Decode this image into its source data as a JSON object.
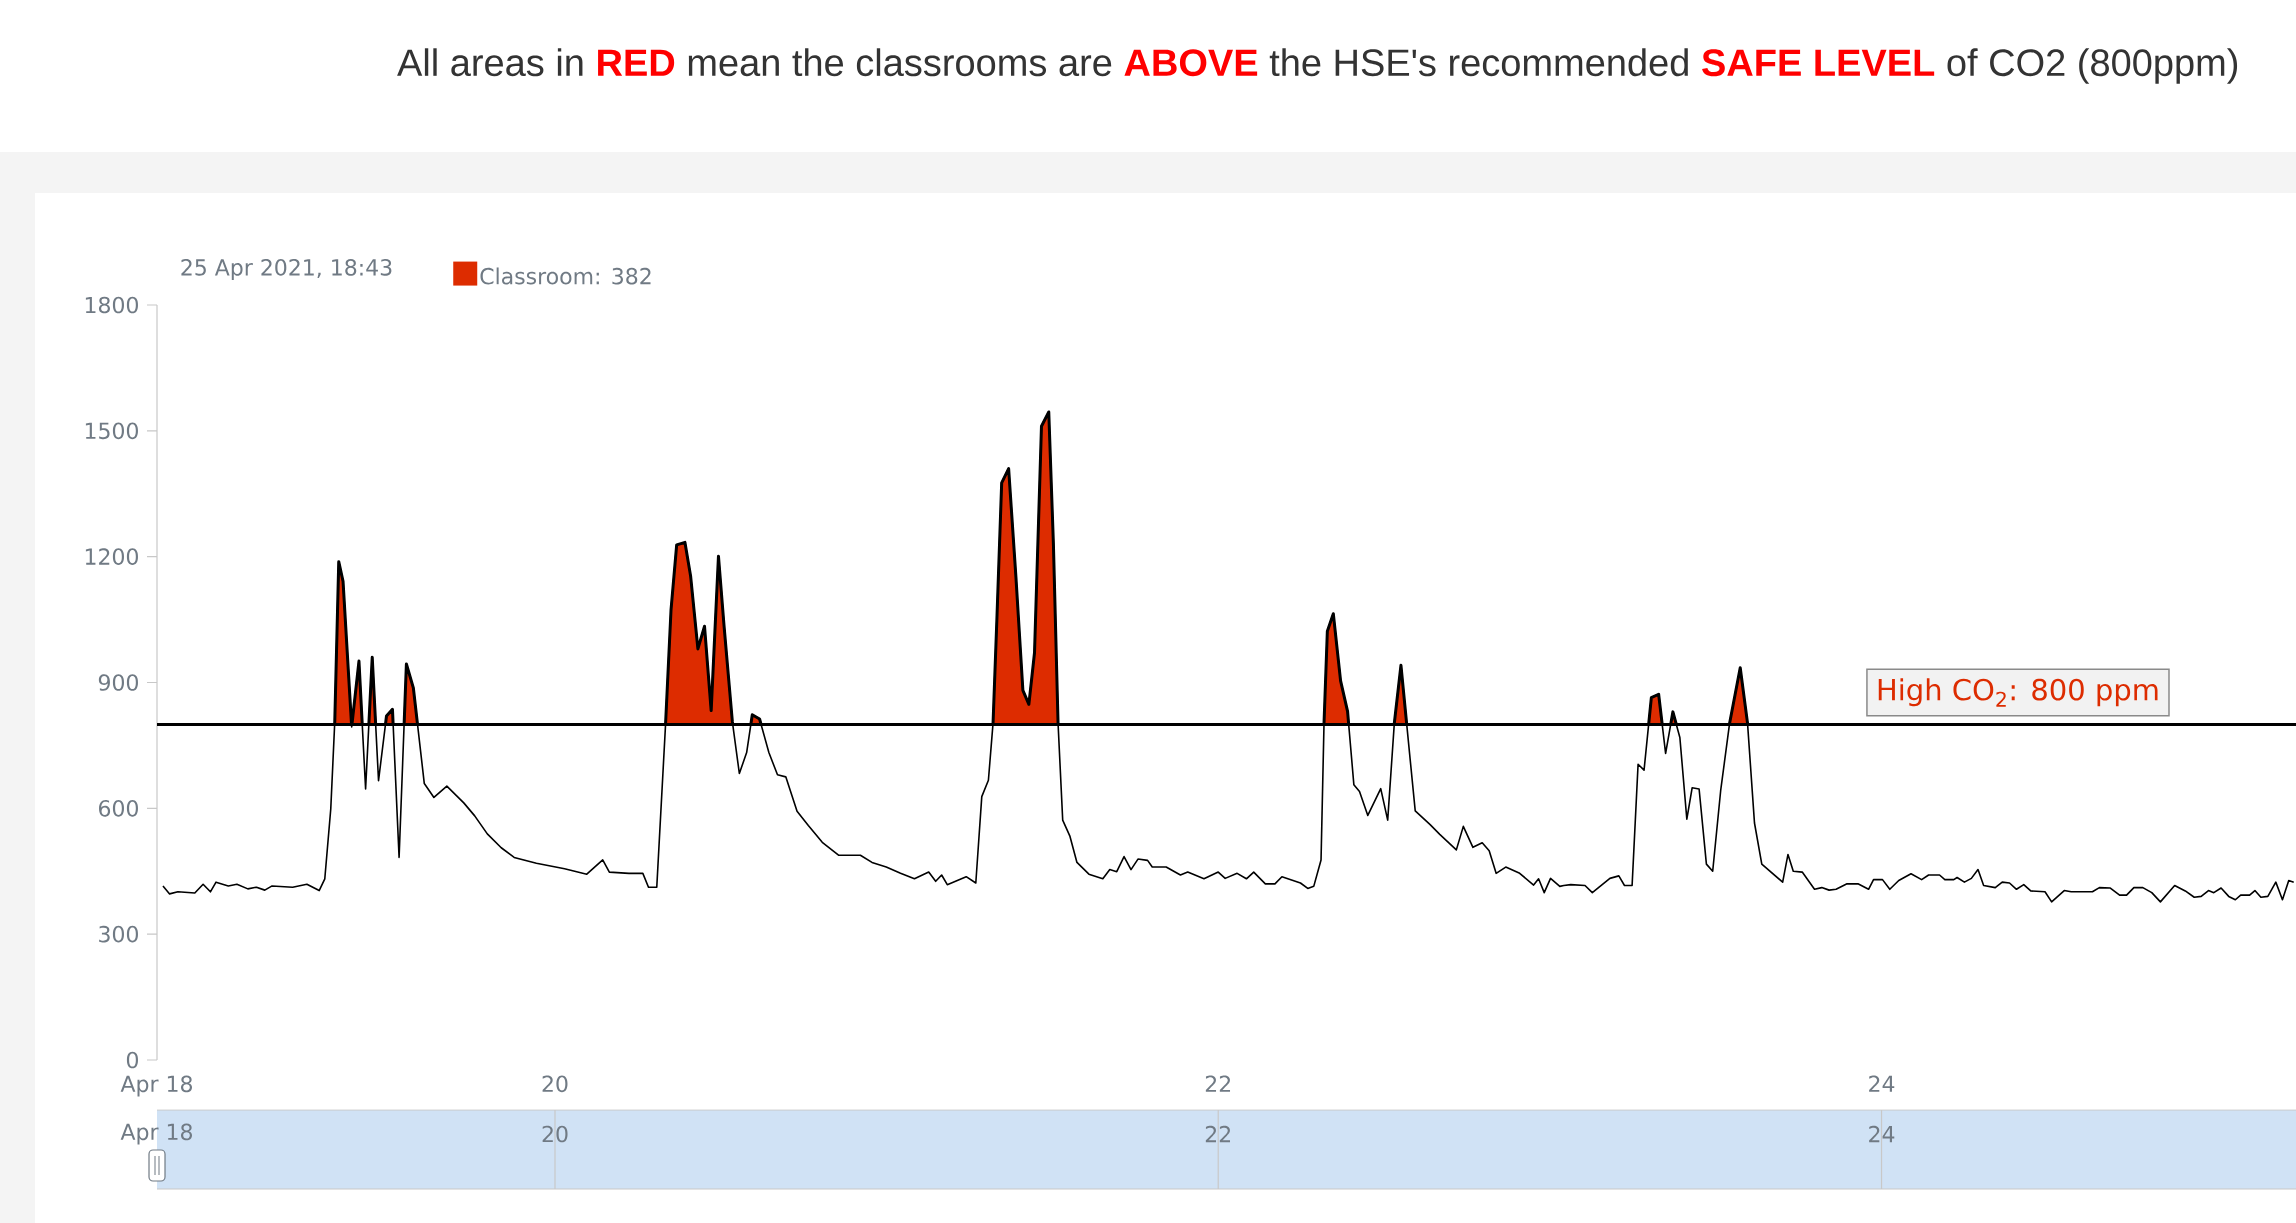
{
  "chart_data": {
    "type": "area",
    "title": "All areas in **RED** mean the classrooms are **ABOVE** the HSE's recommended **SAFE LEVEL** of CO2 (800ppm)",
    "annotations": [
      "25 Apr 2021, 18:43"
    ],
    "xlim": [
      18.8,
      25.25
    ],
    "xticks": [
      {
        "value": 18.8,
        "label": "Apr 18"
      },
      20,
      22,
      24
    ],
    "x2lim": [
      18.8,
      25.25
    ],
    "x2ticks": [
      {
        "value": 18.8,
        "label": "Apr 18"
      },
      20,
      22,
      24
    ],
    "ylim": [
      0,
      1800
    ],
    "yticks": [
      0,
      300,
      600,
      900,
      1200,
      1500,
      1800
    ],
    "legend": "top left",
    "ref_lines": [
      {
        "axis": "y",
        "value": 800,
        "label": "High CO$_{2}$: 800 ppm",
        "color": "#000000"
      }
    ],
    "series": [
      {
        "name": "Classroom: 382",
        "color": "#dd2c00",
        "x": [
          18.818,
          18.838,
          18.863,
          18.914,
          18.939,
          18.961,
          18.978,
          19.015,
          19.041,
          19.074,
          19.1,
          19.125,
          19.147,
          19.209,
          19.252,
          19.289,
          19.306,
          19.324,
          19.336,
          19.348,
          19.361,
          19.387,
          19.409,
          19.429,
          19.449,
          19.468,
          19.492,
          19.51,
          19.53,
          19.552,
          19.573,
          19.606,
          19.635,
          19.674,
          19.725,
          19.758,
          19.796,
          19.838,
          19.877,
          19.944,
          20.029,
          20.096,
          20.144,
          20.164,
          20.223,
          20.265,
          20.282,
          20.307,
          20.333,
          20.35,
          20.367,
          20.392,
          20.409,
          20.431,
          20.451,
          20.471,
          20.493,
          20.51,
          20.535,
          20.556,
          20.578,
          20.595,
          20.617,
          20.645,
          20.671,
          20.696,
          20.73,
          20.764,
          20.806,
          20.856,
          20.921,
          20.956,
          20.999,
          21.042,
          21.084,
          21.127,
          21.148,
          21.166,
          21.183,
          21.24,
          21.269,
          21.287,
          21.307,
          21.321,
          21.333,
          21.347,
          21.368,
          21.39,
          21.411,
          21.429,
          21.446,
          21.467,
          21.489,
          21.503,
          21.517,
          21.531,
          21.553,
          21.574,
          21.61,
          21.652,
          21.673,
          21.694,
          21.716,
          21.737,
          21.758,
          21.787,
          21.801,
          21.843,
          21.886,
          21.908,
          21.957,
          22.0,
          22.021,
          22.057,
          22.085,
          22.107,
          22.142,
          22.171,
          22.192,
          22.248,
          22.27,
          22.288,
          22.31,
          22.319,
          22.329,
          22.347,
          22.369,
          22.39,
          22.409,
          22.426,
          22.451,
          22.49,
          22.511,
          22.531,
          22.551,
          22.568,
          22.594,
          22.639,
          22.668,
          22.718,
          22.739,
          22.768,
          22.796,
          22.817,
          22.838,
          22.867,
          22.909,
          22.951,
          22.966,
          22.983,
          23.002,
          23.03,
          23.042,
          23.063,
          23.106,
          23.128,
          23.181,
          23.208,
          23.225,
          23.248,
          23.266,
          23.284,
          23.306,
          23.328,
          23.349,
          23.371,
          23.392,
          23.413,
          23.429,
          23.45,
          23.472,
          23.491,
          23.515,
          23.542,
          23.574,
          23.596,
          23.617,
          23.639,
          23.702,
          23.718,
          23.734,
          23.761,
          23.798,
          23.82,
          23.842,
          23.863,
          23.896,
          23.929,
          23.961,
          23.976,
          24.003,
          24.025,
          24.052,
          24.089,
          24.121,
          24.142,
          24.175,
          24.191,
          24.218,
          24.228,
          24.25,
          24.271,
          24.291,
          24.308,
          24.343,
          24.364,
          24.386,
          24.407,
          24.429,
          24.45,
          24.493,
          24.513,
          24.551,
          24.572,
          24.636,
          24.657,
          24.69,
          24.718,
          24.739,
          24.761,
          24.788,
          24.815,
          24.841,
          24.884,
          24.916,
          24.943,
          24.964,
          24.986,
          25.002,
          25.024,
          25.047,
          25.067,
          25.083,
          25.11,
          25.126,
          25.144,
          25.165,
          25.189,
          25.209,
          25.228,
          25.243
        ],
        "values": [
          415,
          396,
          401,
          398,
          419,
          401,
          424,
          415,
          419,
          408,
          412,
          405,
          415,
          412,
          419,
          404,
          432,
          599,
          806,
          1188,
          1141,
          794,
          951,
          646,
          960,
          666,
          820,
          836,
          483,
          944,
          887,
          659,
          626,
          653,
          613,
          582,
          539,
          506,
          483,
          469,
          456,
          443,
          477,
          448,
          445,
          445,
          412,
          412,
          793,
          1074,
          1228,
          1234,
          1154,
          980,
          1034,
          833,
          1201,
          1034,
          806,
          683,
          733,
          823,
          813,
          733,
          680,
          675,
          593,
          559,
          519,
          488,
          488,
          471,
          460,
          445,
          432,
          448,
          426,
          441,
          418,
          437,
          422,
          628,
          667,
          803,
          1061,
          1376,
          1410,
          1151,
          881,
          848,
          971,
          1511,
          1545,
          1230,
          803,
          572,
          533,
          471,
          443,
          432,
          454,
          449,
          485,
          454,
          479,
          476,
          460,
          460,
          441,
          448,
          432,
          448,
          433,
          445,
          432,
          448,
          420,
          420,
          437,
          422,
          409,
          414,
          477,
          803,
          1022,
          1064,
          904,
          831,
          656,
          640,
          583,
          647,
          572,
          803,
          941,
          803,
          594,
          561,
          538,
          501,
          557,
          507,
          518,
          499,
          445,
          460,
          445,
          417,
          432,
          399,
          433,
          414,
          416,
          418,
          416,
          399,
          433,
          439,
          416,
          416,
          705,
          691,
          864,
          872,
          731,
          830,
          769,
          574,
          649,
          646,
          467,
          450,
          642,
          803,
          935,
          803,
          565,
          467,
          424,
          490,
          450,
          448,
          407,
          411,
          405,
          407,
          420,
          420,
          407,
          430,
          430,
          407,
          428,
          444,
          430,
          441,
          441,
          430,
          430,
          435,
          424,
          433,
          454,
          416,
          411,
          424,
          422,
          407,
          418,
          403,
          401,
          377,
          404,
          401,
          401,
          411,
          410,
          393,
          393,
          411,
          411,
          399,
          377,
          416,
          403,
          388,
          390,
          404,
          399,
          410,
          390,
          382,
          393,
          393,
          404,
          388,
          390,
          424,
          382,
          428,
          424
        ]
      }
    ]
  }
}
